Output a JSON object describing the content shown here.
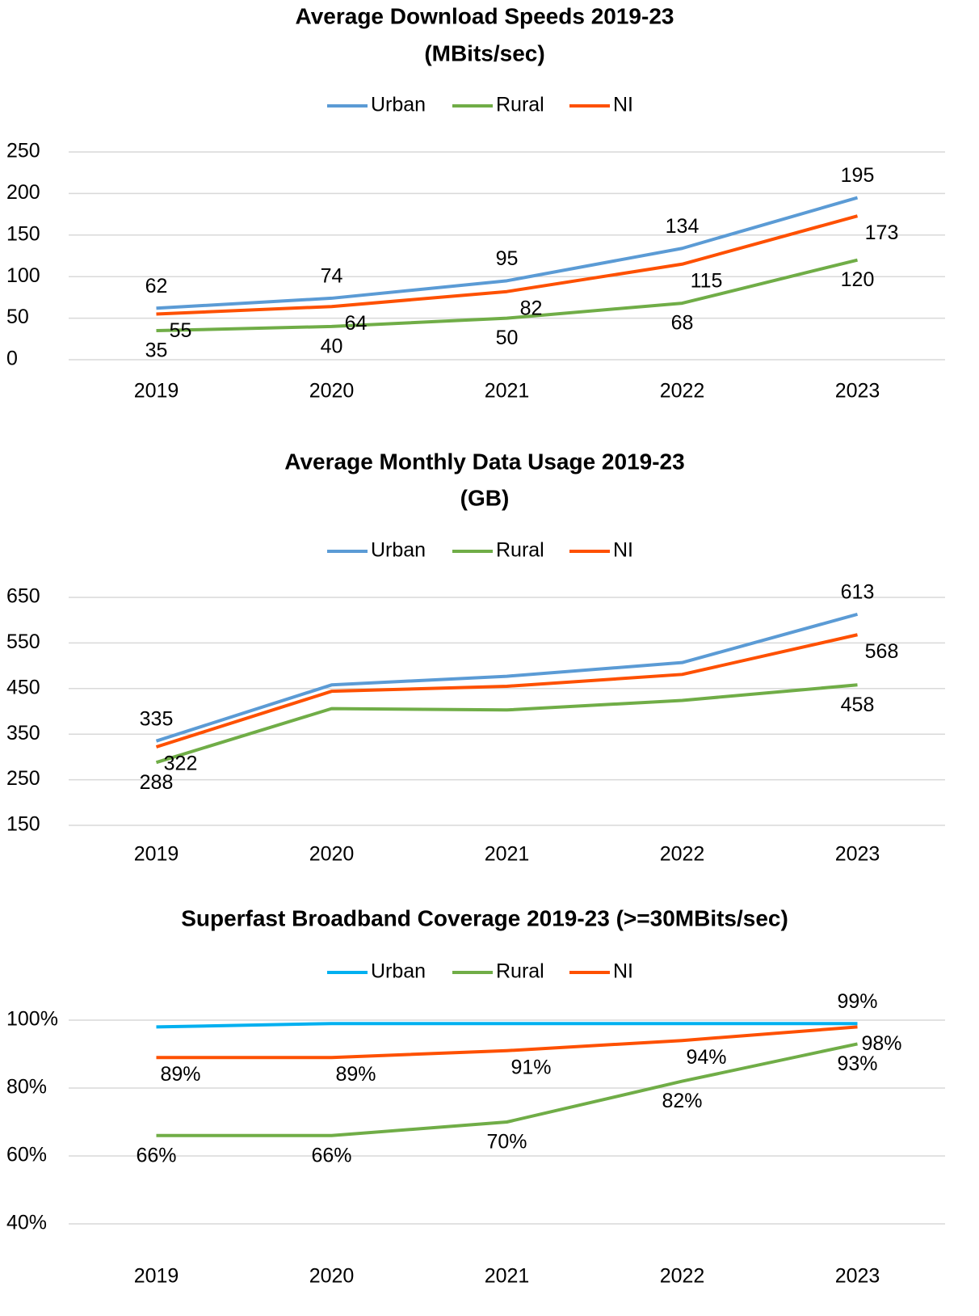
{
  "chart_data": [
    {
      "type": "line",
      "title": "Average Download Speeds 2019-23",
      "subtitle": "(MBits/sec)",
      "categories": [
        "2019",
        "2020",
        "2021",
        "2022",
        "2023"
      ],
      "series": [
        {
          "name": "Urban",
          "color": "#5b9bd5",
          "values": [
            62,
            74,
            95,
            134,
            195
          ]
        },
        {
          "name": "Rural",
          "color": "#70ad47",
          "values": [
            35,
            40,
            50,
            68,
            120
          ]
        },
        {
          "name": "NI",
          "color": "#fe5000",
          "values": [
            55,
            64,
            82,
            115,
            173
          ]
        }
      ],
      "ylim": [
        0,
        250
      ],
      "yticks": [
        0,
        50,
        100,
        150,
        200,
        250
      ],
      "grid": true,
      "legend": "top"
    },
    {
      "type": "line",
      "title": "Average Monthly Data Usage 2019-23",
      "subtitle": "(GB)",
      "categories": [
        "2019",
        "2020",
        "2021",
        "2022",
        "2023"
      ],
      "series": [
        {
          "name": "Urban",
          "color": "#5b9bd5",
          "values": [
            335,
            458,
            477,
            507,
            613
          ],
          "value_labels": [
            "335",
            null,
            null,
            null,
            "613"
          ]
        },
        {
          "name": "Rural",
          "color": "#70ad47",
          "values": [
            288,
            406,
            403,
            424,
            458
          ],
          "value_labels": [
            "288",
            null,
            null,
            null,
            "458"
          ]
        },
        {
          "name": "NI",
          "color": "#fe5000",
          "values": [
            322,
            444,
            455,
            481,
            568
          ],
          "value_labels": [
            "322",
            null,
            null,
            null,
            "568"
          ]
        }
      ],
      "ylim": [
        150,
        650
      ],
      "yticks": [
        150,
        250,
        350,
        450,
        550,
        650
      ],
      "grid": true,
      "legend": "top"
    },
    {
      "type": "line",
      "title": "Superfast Broadband Coverage 2019-23 (>=30MBits/sec)",
      "categories": [
        "2019",
        "2020",
        "2021",
        "2022",
        "2023"
      ],
      "series": [
        {
          "name": "Urban",
          "color": "#00b0f0",
          "values": [
            98,
            99,
            99,
            99,
            99
          ],
          "value_labels": [
            null,
            null,
            null,
            null,
            "99%"
          ]
        },
        {
          "name": "Rural",
          "color": "#70ad47",
          "values": [
            66,
            66,
            70,
            82,
            93
          ],
          "value_labels": [
            "66%",
            "66%",
            "70%",
            "82%",
            "93%"
          ]
        },
        {
          "name": "NI",
          "color": "#fe5000",
          "values": [
            89,
            89,
            91,
            94,
            98
          ],
          "value_labels": [
            "89%",
            "89%",
            "91%",
            "94%",
            "98%"
          ]
        }
      ],
      "ylim": [
        40,
        100
      ],
      "yticks": [
        {
          "value": 40,
          "label": "40%"
        },
        {
          "value": 60,
          "label": "60%"
        },
        {
          "value": 80,
          "label": "80%"
        },
        {
          "value": 100,
          "label": "100%"
        }
      ],
      "grid": true,
      "legend": "top"
    }
  ]
}
